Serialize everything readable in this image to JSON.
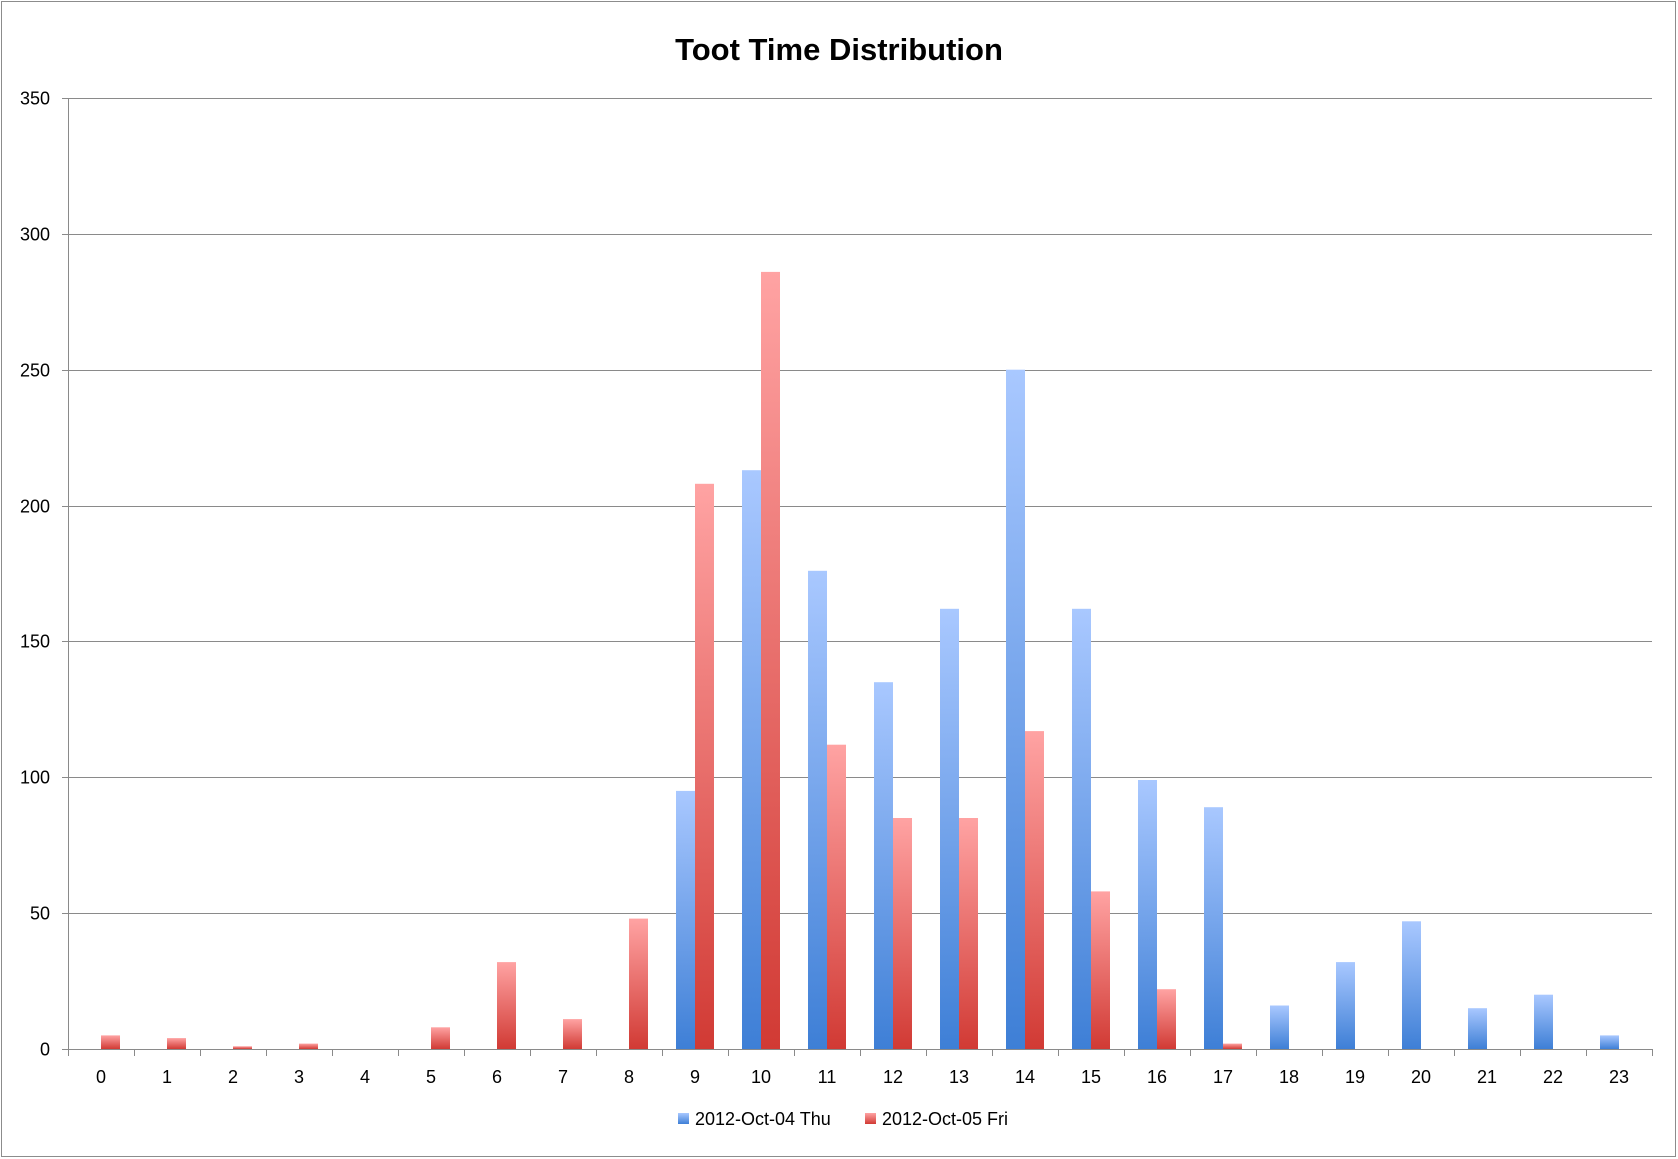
{
  "chart_data": {
    "type": "bar",
    "title": "Toot Time Distribution",
    "xlabel": "",
    "ylabel": "",
    "ylim": [
      0,
      350
    ],
    "yticks": [
      0,
      50,
      100,
      150,
      200,
      250,
      300,
      350
    ],
    "grid": true,
    "legend_position": "bottom",
    "categories": [
      "0",
      "1",
      "2",
      "3",
      "4",
      "5",
      "6",
      "7",
      "8",
      "9",
      "10",
      "11",
      "12",
      "13",
      "14",
      "15",
      "16",
      "17",
      "18",
      "19",
      "20",
      "21",
      "22",
      "23"
    ],
    "series": [
      {
        "name": "2012-Oct-04 Thu",
        "color": "#4a86d8",
        "values": [
          0,
          0,
          0,
          0,
          0,
          0,
          0,
          0,
          0,
          95,
          213,
          176,
          135,
          162,
          250,
          162,
          99,
          89,
          16,
          32,
          47,
          15,
          20,
          5
        ]
      },
      {
        "name": "2012-Oct-05 Fri",
        "color": "#d9453e",
        "values": [
          5,
          4,
          1,
          2,
          0,
          8,
          32,
          11,
          48,
          208,
          286,
          112,
          85,
          85,
          117,
          58,
          22,
          2,
          0,
          0,
          0,
          0,
          0,
          0
        ]
      }
    ]
  }
}
